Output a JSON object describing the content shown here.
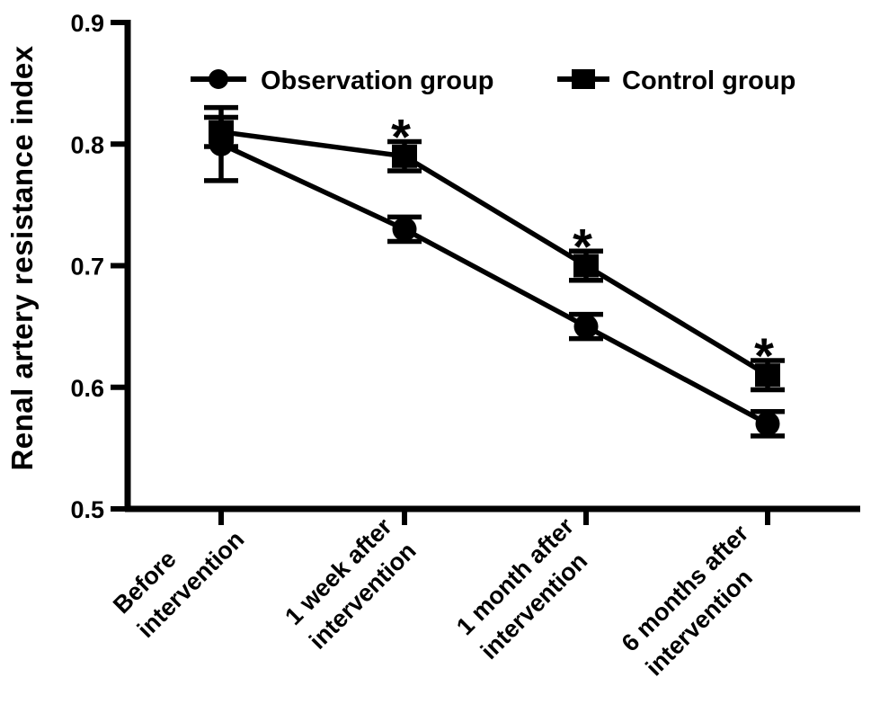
{
  "figure": {
    "background_color": "#ffffff",
    "ink_color": "#000000"
  },
  "chart_data": {
    "type": "line",
    "title": "",
    "ylabel": "Renal artery resistance index",
    "xlabel": "",
    "ylim": [
      0.5,
      0.9
    ],
    "yticks": [
      "0.5",
      "0.6",
      "0.7",
      "0.8",
      "0.9"
    ],
    "grid": false,
    "legend_position": "top-inside",
    "categories": [
      {
        "label": "Before intervention",
        "lines": [
          "Before",
          "intervention"
        ]
      },
      {
        "label": "1 week after intervention",
        "lines": [
          "1 week after",
          "intervention"
        ]
      },
      {
        "label": "1 month after intervention",
        "lines": [
          "1 month after",
          "intervention"
        ]
      },
      {
        "label": "6 months after intervention",
        "lines": [
          "6 months after",
          "intervention"
        ]
      }
    ],
    "series": [
      {
        "name": "Observation group",
        "marker": "circle",
        "values": [
          0.8,
          0.73,
          0.65,
          0.57
        ],
        "errors": [
          0.03,
          0.01,
          0.01,
          0.01
        ]
      },
      {
        "name": "Control group",
        "marker": "square",
        "values": [
          0.81,
          0.79,
          0.7,
          0.61
        ],
        "errors": [
          0.012,
          0.012,
          0.012,
          0.012
        ]
      }
    ],
    "annotations": [
      {
        "symbol": "*",
        "series": "Control group",
        "category_index": 1
      },
      {
        "symbol": "*",
        "series": "Control group",
        "category_index": 2
      },
      {
        "symbol": "*",
        "series": "Control group",
        "category_index": 3
      }
    ]
  }
}
